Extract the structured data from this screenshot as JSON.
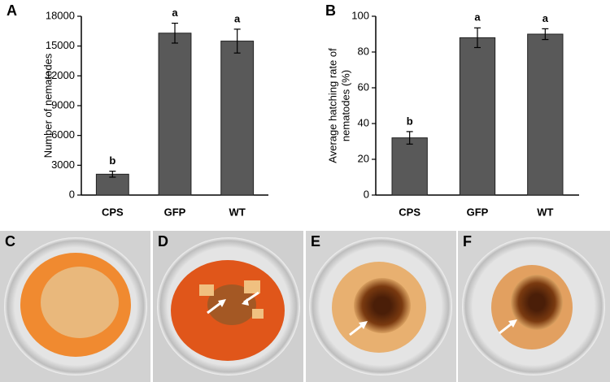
{
  "chart_data": [
    {
      "type": "bar",
      "panel": "A",
      "ylabel": [
        "Number of nematodes"
      ],
      "categories": [
        "CPS",
        "GFP",
        "WT"
      ],
      "values": [
        2100,
        16300,
        15500
      ],
      "errors": [
        300,
        1000,
        1200
      ],
      "annotations": [
        "b",
        "a",
        "a"
      ],
      "color": "#595959",
      "ylim": [
        0,
        18000
      ],
      "yticks": [
        0,
        3000,
        6000,
        9000,
        12000,
        15000,
        18000
      ]
    },
    {
      "type": "bar",
      "panel": "B",
      "ylabel": [
        "Average  hatching rate of",
        "nematodes (%)"
      ],
      "categories": [
        "CPS",
        "GFP",
        "WT"
      ],
      "values": [
        32,
        88,
        90
      ],
      "errors": [
        3.5,
        5.5,
        3
      ],
      "annotations": [
        "b",
        "a",
        "a"
      ],
      "color": "#595959",
      "ylim": [
        0,
        100
      ],
      "yticks": [
        0,
        20,
        40,
        60,
        80,
        100
      ]
    }
  ],
  "photo_panels": [
    "C",
    "D",
    "E",
    "F"
  ]
}
